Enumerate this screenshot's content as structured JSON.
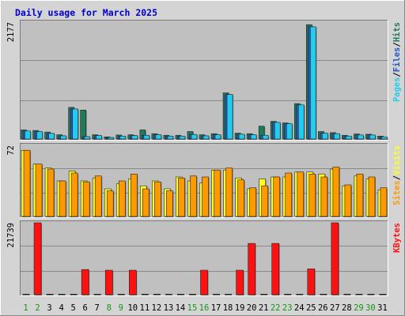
{
  "chart_data": {
    "type": "bar",
    "title": "Daily usage for March 2025",
    "categories": [
      "1",
      "2",
      "3",
      "4",
      "5",
      "6",
      "7",
      "8",
      "9",
      "10",
      "11",
      "12",
      "13",
      "14",
      "15",
      "16",
      "17",
      "18",
      "19",
      "20",
      "21",
      "22",
      "23",
      "24",
      "25",
      "26",
      "27",
      "28",
      "29",
      "30",
      "31"
    ],
    "weekend_days": [
      "1",
      "2",
      "8",
      "9",
      "15",
      "16",
      "22",
      "23",
      "29",
      "30"
    ],
    "grid": true,
    "colors": {
      "hits": "#1f7a5a",
      "files": "#2456c8",
      "pages": "#22ccee",
      "visits": "#ffff22",
      "sites": "#ff9900",
      "kbytes": "#ff1111",
      "title": "#0000cc",
      "plot_bg": "#c0c0c0",
      "frame_bg": "#d4d4d4",
      "weekend_label": "#119911"
    },
    "panels": [
      {
        "id": "hits-files-pages",
        "axis_max": 2177,
        "axis_max_label": "2177",
        "legend": [
          "Pages",
          "/",
          "Files",
          "/",
          "Hits"
        ],
        "legend_colors": [
          "#22ccee",
          "#000000",
          "#2456c8",
          "#000000",
          "#1f7a5a"
        ],
        "series": [
          {
            "name": "Hits",
            "values": [
              170,
              160,
              130,
              80,
              590,
              540,
              80,
              40,
              75,
              80,
              170,
              100,
              70,
              70,
              140,
              80,
              100,
              860,
              110,
              100,
              240,
              330,
              300,
              660,
              2130,
              140,
              120,
              70,
              95,
              90,
              55
            ]
          },
          {
            "name": "Files",
            "values": [
              150,
              140,
              105,
              60,
              560,
              45,
              65,
              30,
              55,
              65,
              70,
              80,
              55,
              55,
              85,
              60,
              80,
              830,
              90,
              80,
              70,
              310,
              285,
              635,
              2090,
              110,
              100,
              55,
              75,
              75,
              40
            ]
          },
          {
            "name": "Pages",
            "values": [
              150,
              140,
              105,
              60,
              560,
              45,
              65,
              30,
              55,
              65,
              70,
              80,
              55,
              55,
              85,
              60,
              80,
              830,
              90,
              80,
              70,
              310,
              285,
              635,
              2090,
              110,
              100,
              55,
              75,
              75,
              40
            ]
          }
        ]
      },
      {
        "id": "visits-sites",
        "axis_max": 72,
        "axis_max_label": "72",
        "legend": [
          "Sites",
          "/",
          "Visits"
        ],
        "legend_colors": [
          "#ff9900",
          "#000000",
          "#ffff22"
        ],
        "series": [
          {
            "name": "Visits",
            "values": [
              67,
              53,
              49,
              36,
              46,
              36,
              39,
              28,
              33,
              38,
              31,
              36,
              28,
              40,
              36,
              34,
              47,
              47,
              39,
              28,
              38,
              40,
              40,
              45,
              45,
              43,
              48,
              31,
              41,
              38,
              27
            ]
          },
          {
            "name": "Sites",
            "values": [
              67,
              53,
              48,
              36,
              44,
              35,
              41,
              26,
              36,
              43,
              28,
              35,
              26,
              39,
              41,
              40,
              47,
              49,
              37,
              29,
              31,
              40,
              44,
              45,
              43,
              40,
              50,
              32,
              43,
              40,
              29
            ]
          }
        ]
      },
      {
        "id": "kbytes",
        "axis_max": 21739,
        "axis_max_label": "21739",
        "legend": [
          "KBytes"
        ],
        "legend_colors": [
          "#ff1111"
        ],
        "series": [
          {
            "name": "KBytes",
            "values": [
              0,
              21739,
              0,
              0,
              0,
              7600,
              0,
              7400,
              0,
              7400,
              0,
              0,
              0,
              0,
              0,
              7400,
              0,
              0,
              7400,
              15500,
              0,
              15500,
              0,
              0,
              7800,
              0,
              21739,
              0,
              0,
              0,
              0
            ]
          }
        ]
      }
    ]
  }
}
